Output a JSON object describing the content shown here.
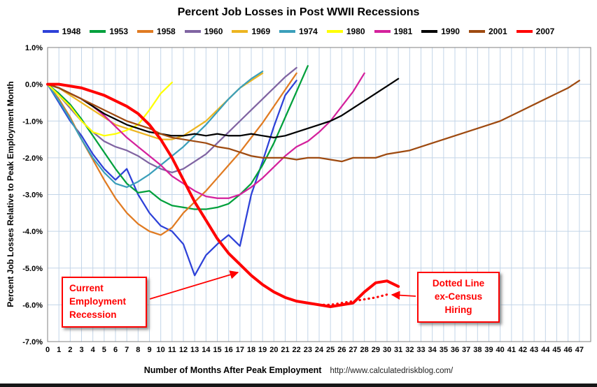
{
  "source_url": "http://www.calculatedriskblog.com/",
  "annotation_color": "#ff0000",
  "annotations": {
    "current_recession": "Current Employment Recession",
    "ex_census": "Dotted Line ex-Census Hiring"
  },
  "chart_data": {
    "type": "line",
    "title": "Percent Job Losses in Post WWII Recessions",
    "xlabel": "Number of Months After Peak Employment",
    "ylabel": "Percent Job Losses Relative to Peak Employment Month",
    "xlim": [
      0,
      47
    ],
    "ylim": [
      -7.0,
      1.0
    ],
    "grid": true,
    "grid_color": "#c3d5e8",
    "legend_position": "top",
    "yticks": [
      "1.0%",
      "0.0%",
      "-1.0%",
      "-2.0%",
      "-3.0%",
      "-4.0%",
      "-5.0%",
      "-6.0%",
      "-7.0%"
    ],
    "xticks": [
      0,
      1,
      2,
      3,
      4,
      5,
      6,
      7,
      8,
      9,
      10,
      11,
      12,
      13,
      14,
      15,
      16,
      17,
      18,
      19,
      20,
      21,
      22,
      23,
      24,
      25,
      26,
      27,
      28,
      29,
      30,
      31,
      32,
      33,
      34,
      35,
      36,
      37,
      38,
      39,
      40,
      41,
      42,
      43,
      44,
      45,
      46,
      47
    ],
    "series": [
      {
        "name": "1948",
        "color": "#2d41d8",
        "start_month": 0,
        "values": [
          0.0,
          -0.5,
          -1.0,
          -1.4,
          -1.9,
          -2.3,
          -2.6,
          -2.3,
          -3.0,
          -3.5,
          -3.85,
          -4.0,
          -4.35,
          -5.2,
          -4.65,
          -4.35,
          -4.1,
          -4.4,
          -3.0,
          -2.1,
          -1.15,
          -0.3,
          0.1
        ]
      },
      {
        "name": "1953",
        "color": "#00a03c",
        "start_month": 0,
        "values": [
          0.0,
          -0.25,
          -0.55,
          -0.95,
          -1.4,
          -1.85,
          -2.3,
          -2.7,
          -2.95,
          -2.9,
          -3.15,
          -3.3,
          -3.35,
          -3.4,
          -3.4,
          -3.35,
          -3.25,
          -3.0,
          -2.7,
          -2.2,
          -1.6,
          -0.9,
          -0.2,
          0.5
        ]
      },
      {
        "name": "1958",
        "color": "#e07b22",
        "start_month": 0,
        "values": [
          0.0,
          -0.4,
          -0.9,
          -1.5,
          -2.05,
          -2.6,
          -3.1,
          -3.5,
          -3.8,
          -4.0,
          -4.1,
          -3.9,
          -3.5,
          -3.2,
          -2.9,
          -2.55,
          -2.2,
          -1.85,
          -1.45,
          -1.05,
          -0.6,
          -0.15,
          0.3
        ]
      },
      {
        "name": "1960",
        "color": "#8064a2",
        "start_month": 0,
        "values": [
          0.0,
          -0.3,
          -0.65,
          -1.0,
          -1.3,
          -1.55,
          -1.7,
          -1.8,
          -1.95,
          -2.15,
          -2.3,
          -2.4,
          -2.3,
          -2.1,
          -1.9,
          -1.6,
          -1.3,
          -1.0,
          -0.7,
          -0.4,
          -0.1,
          0.2,
          0.45
        ]
      },
      {
        "name": "1969",
        "color": "#edb520",
        "start_month": 0,
        "values": [
          0.0,
          -0.1,
          -0.3,
          -0.5,
          -0.7,
          -0.9,
          -1.1,
          -1.2,
          -1.3,
          -1.4,
          -1.5,
          -1.5,
          -1.4,
          -1.2,
          -1.0,
          -0.7,
          -0.4,
          -0.1,
          0.1,
          0.3
        ]
      },
      {
        "name": "1974",
        "color": "#3b9fba",
        "start_month": 0,
        "values": [
          0.0,
          -0.45,
          -0.95,
          -1.5,
          -2.0,
          -2.4,
          -2.7,
          -2.8,
          -2.65,
          -2.45,
          -2.2,
          -1.95,
          -1.7,
          -1.4,
          -1.1,
          -0.75,
          -0.4,
          -0.1,
          0.15,
          0.35
        ]
      },
      {
        "name": "1980",
        "color": "#ffff00",
        "start_month": 0,
        "values": [
          0.0,
          -0.3,
          -0.6,
          -1.0,
          -1.3,
          -1.4,
          -1.35,
          -1.25,
          -1.1,
          -0.7,
          -0.25,
          0.05
        ]
      },
      {
        "name": "1981",
        "color": "#d4219c",
        "start_month": 0,
        "values": [
          0.0,
          -0.1,
          -0.25,
          -0.4,
          -0.6,
          -0.85,
          -1.15,
          -1.45,
          -1.7,
          -1.95,
          -2.2,
          -2.5,
          -2.7,
          -2.9,
          -3.05,
          -3.1,
          -3.1,
          -3.0,
          -2.8,
          -2.55,
          -2.25,
          -1.95,
          -1.7,
          -1.55,
          -1.3,
          -1.0,
          -0.6,
          -0.2,
          0.3
        ]
      },
      {
        "name": "1990",
        "color": "#000000",
        "start_month": 0,
        "values": [
          0.0,
          -0.1,
          -0.25,
          -0.4,
          -0.6,
          -0.8,
          -0.95,
          -1.1,
          -1.2,
          -1.3,
          -1.35,
          -1.4,
          -1.4,
          -1.35,
          -1.4,
          -1.35,
          -1.4,
          -1.4,
          -1.35,
          -1.4,
          -1.45,
          -1.4,
          -1.3,
          -1.2,
          -1.1,
          -1.0,
          -0.85,
          -0.65,
          -0.45,
          -0.25,
          -0.05,
          0.15
        ]
      },
      {
        "name": "2001",
        "color": "#9e4a10",
        "start_month": 0,
        "values": [
          0.0,
          -0.1,
          -0.25,
          -0.4,
          -0.55,
          -0.7,
          -0.85,
          -1.0,
          -1.1,
          -1.2,
          -1.35,
          -1.45,
          -1.5,
          -1.55,
          -1.6,
          -1.7,
          -1.75,
          -1.85,
          -1.95,
          -2.0,
          -2.0,
          -2.0,
          -2.05,
          -2.0,
          -2.0,
          -2.05,
          -2.1,
          -2.0,
          -2.0,
          -2.0,
          -1.9,
          -1.85,
          -1.8,
          -1.7,
          -1.6,
          -1.5,
          -1.4,
          -1.3,
          -1.2,
          -1.1,
          -1.0,
          -0.85,
          -0.7,
          -0.55,
          -0.4,
          -0.25,
          -0.1,
          0.1
        ]
      },
      {
        "name": "2007",
        "color": "#ff0000",
        "width": 4,
        "start_month": 0,
        "values": [
          0.0,
          0.0,
          -0.05,
          -0.1,
          -0.2,
          -0.3,
          -0.45,
          -0.6,
          -0.8,
          -1.1,
          -1.5,
          -2.0,
          -2.6,
          -3.2,
          -3.7,
          -4.2,
          -4.6,
          -4.9,
          -5.2,
          -5.45,
          -5.65,
          -5.8,
          -5.9,
          -5.95,
          -6.0,
          -6.05,
          -6.0,
          -5.95,
          -5.65,
          -5.4,
          -5.35,
          -5.5
        ]
      },
      {
        "name": "2007 ex-Census Hiring",
        "color": "#ff0000",
        "dotted": true,
        "in_legend": false,
        "start_month": 24,
        "values": [
          -6.0,
          -6.0,
          -5.95,
          -5.9,
          -5.85,
          -5.8,
          -5.72
        ]
      }
    ]
  }
}
